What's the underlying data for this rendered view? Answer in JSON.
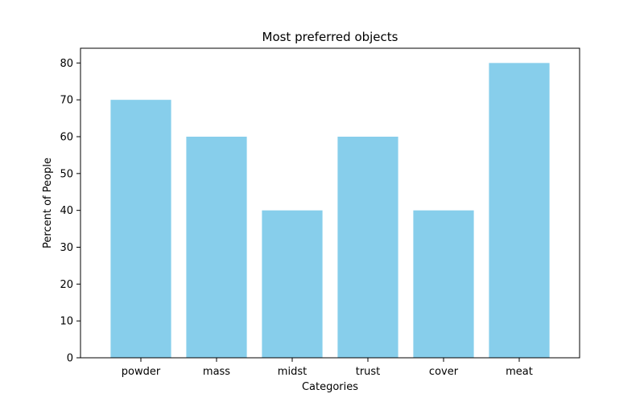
{
  "chart_data": {
    "type": "bar",
    "title": "Most preferred objects",
    "xlabel": "Categories",
    "ylabel": "Percent of People",
    "categories": [
      "powder",
      "mass",
      "midst",
      "trust",
      "cover",
      "meat"
    ],
    "values": [
      70,
      60,
      40,
      60,
      40,
      80
    ],
    "ylim": [
      0,
      84
    ],
    "yticks": [
      0,
      10,
      20,
      30,
      40,
      50,
      60,
      70,
      80
    ],
    "grid": false,
    "legend": "none",
    "bar_color": "#87CEEB"
  }
}
